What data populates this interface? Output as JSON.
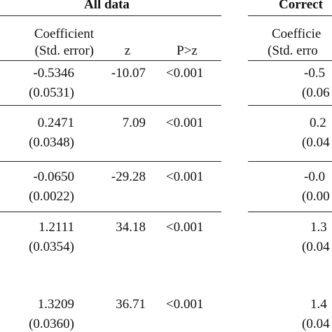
{
  "table": {
    "groups": [
      {
        "title": "All data"
      },
      {
        "title": "Correct"
      }
    ],
    "header": {
      "coef_line1": "Coefficient",
      "coef_line2": "(Std. error)",
      "z": "z",
      "p": "P>z",
      "coef2_line1": "Coefficie",
      "coef2_line2": "(Std. erro"
    },
    "rows": [
      {
        "coef": "-0.5346",
        "se": "(0.0531)",
        "z": "-10.07",
        "p": "<0.001",
        "coef2": "-0.5",
        "se2": "(0.06"
      },
      {
        "coef": "0.2471",
        "se": "(0.0348)",
        "z": "7.09",
        "p": "<0.001",
        "coef2": "0.2",
        "se2": "(0.04"
      },
      {
        "coef": "-0.0650",
        "se": "(0.0022)",
        "z": "-29.28",
        "p": "<0.001",
        "coef2": "-0.0",
        "se2": "(0.00"
      },
      {
        "coef": "1.2111",
        "se": "(0.0354)",
        "z": "34.18",
        "p": "<0.001",
        "coef2": "1.3",
        "se2": "(0.04"
      },
      {
        "coef": "1.3209",
        "se": "(0.0360)",
        "z": "36.71",
        "p": "<0.001",
        "coef2": "1.4",
        "se2": "(0.04"
      }
    ]
  }
}
